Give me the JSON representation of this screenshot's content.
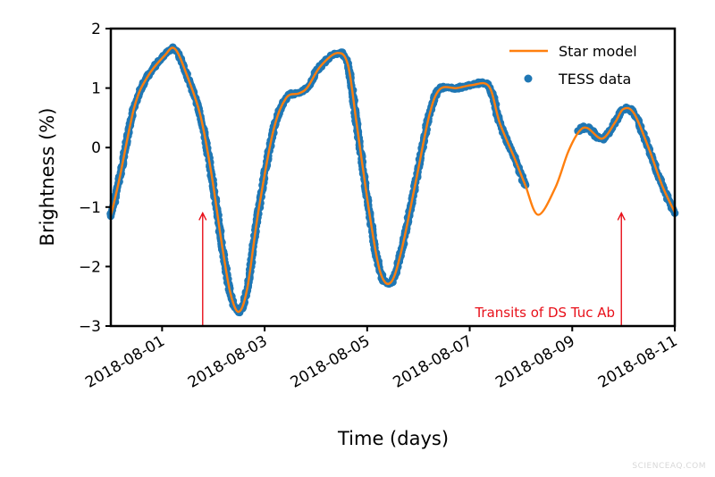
{
  "chart_data": {
    "type": "line",
    "title": "",
    "xlabel": "Time (days)",
    "ylabel": "Brightness (%)",
    "xlim": [
      "2018-07-31T00:00",
      "2018-08-11T00:00"
    ],
    "ylim": [
      -3,
      2
    ],
    "x_ticks": [
      "2018-08-01",
      "2018-08-03",
      "2018-08-05",
      "2018-08-07",
      "2018-08-09",
      "2018-08-11"
    ],
    "y_ticks": [
      2,
      1,
      0,
      -1,
      -2,
      -3
    ],
    "grid": false,
    "legend": {
      "placement": "top-right",
      "entries": [
        "Star model",
        "TESS data"
      ]
    },
    "colors": {
      "model": "#ff7f0e",
      "data": "#1f77b4",
      "annotation": "#e8101a"
    },
    "series": [
      {
        "name": "Star model",
        "kind": "line",
        "points": [
          [
            "2018-07-31T00:00",
            -1.15
          ],
          [
            "2018-07-31T04:00",
            -0.53
          ],
          [
            "2018-07-31T11:00",
            0.68
          ],
          [
            "2018-07-31T17:00",
            1.18
          ],
          [
            "2018-08-01T01:00",
            1.54
          ],
          [
            "2018-08-01T06:00",
            1.66
          ],
          [
            "2018-08-01T12:00",
            1.18
          ],
          [
            "2018-08-01T18:00",
            0.53
          ],
          [
            "2018-08-01T23:00",
            -0.42
          ],
          [
            "2018-08-02T04:00",
            -1.63
          ],
          [
            "2018-08-02T08:00",
            -2.45
          ],
          [
            "2018-08-02T12:00",
            -2.76
          ],
          [
            "2018-08-02T16:00",
            -2.34
          ],
          [
            "2018-08-02T21:00",
            -1.09
          ],
          [
            "2018-08-03T04:00",
            0.27
          ],
          [
            "2018-08-03T10:00",
            0.83
          ],
          [
            "2018-08-03T16:00",
            0.91
          ],
          [
            "2018-08-03T20:00",
            1.01
          ],
          [
            "2018-08-04T02:00",
            1.36
          ],
          [
            "2018-08-04T10:00",
            1.59
          ],
          [
            "2018-08-04T15:00",
            1.39
          ],
          [
            "2018-08-04T19:00",
            0.42
          ],
          [
            "2018-08-05T01:00",
            -1.09
          ],
          [
            "2018-08-05T06:00",
            -2.08
          ],
          [
            "2018-08-05T11:00",
            -2.27
          ],
          [
            "2018-08-05T16:00",
            -1.74
          ],
          [
            "2018-08-05T23:00",
            -0.53
          ],
          [
            "2018-08-06T05:00",
            0.53
          ],
          [
            "2018-08-06T10:00",
            0.98
          ],
          [
            "2018-08-06T18:00",
            1.0
          ],
          [
            "2018-08-07T01:00",
            1.05
          ],
          [
            "2018-08-07T09:00",
            1.03
          ],
          [
            "2018-08-07T14:00",
            0.42
          ],
          [
            "2018-08-07T21:00",
            -0.18
          ],
          [
            "2018-08-08T02:00",
            -0.63
          ],
          [
            "2018-08-08T08:00",
            -1.13
          ],
          [
            "2018-08-08T16:00",
            -0.68
          ],
          [
            "2018-08-08T22:00",
            -0.08
          ],
          [
            "2018-08-09T03:00",
            0.26
          ],
          [
            "2018-08-09T07:00",
            0.33
          ],
          [
            "2018-08-09T14:00",
            0.15
          ],
          [
            "2018-08-09T20:00",
            0.42
          ],
          [
            "2018-08-10T00:00",
            0.65
          ],
          [
            "2018-08-10T05:00",
            0.57
          ],
          [
            "2018-08-10T12:00",
            -0.03
          ],
          [
            "2018-08-10T18:00",
            -0.63
          ],
          [
            "2018-08-11T00:00",
            -1.09
          ]
        ]
      },
      {
        "name": "TESS data",
        "kind": "scatter",
        "coverage": [
          [
            "2018-07-31T00:00",
            "2018-08-08T02:00"
          ],
          [
            "2018-08-09T03:00",
            "2018-08-11T00:00"
          ]
        ]
      }
    ],
    "annotations": [
      {
        "text": "Transits of DS Tuc Ab",
        "arrows": [
          {
            "x": "2018-08-01T19:00",
            "y_from": -3,
            "y_to": -1.1
          },
          {
            "x": "2018-08-09T23:00",
            "y_from": -3,
            "y_to": -1.1
          }
        ]
      }
    ]
  },
  "watermark": "SCIENCEAQ.COM"
}
